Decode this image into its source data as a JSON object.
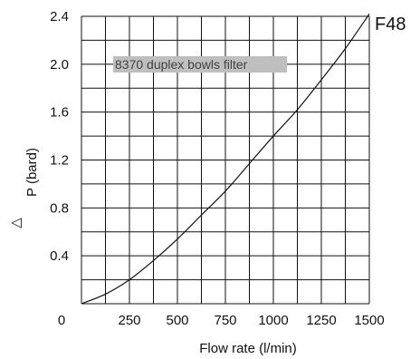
{
  "chart_data": {
    "type": "line",
    "title": "F48",
    "annotation": "8370 duplex bowls filter",
    "xlabel": "Flow rate  (l/min)",
    "ylabel_symbol": "△",
    "ylabel": "P (bard)",
    "x_ticks": [
      "250",
      "500",
      "750",
      "1000",
      "1250",
      "1500"
    ],
    "y_ticks": [
      "0.4",
      "0.8",
      "1.2",
      "1.6",
      "2.0",
      "2.4"
    ],
    "origin_label": "0",
    "xlim": [
      0,
      1500
    ],
    "ylim": [
      0,
      2.4
    ],
    "grid": true,
    "x_gridlines": 12,
    "y_gridlines": 12,
    "series": [
      {
        "x": [
          0,
          125,
          250,
          375,
          500,
          625,
          750,
          875,
          1000,
          1125,
          1250,
          1375,
          1500
        ],
        "y": [
          0,
          0.08,
          0.2,
          0.36,
          0.54,
          0.74,
          0.94,
          1.17,
          1.4,
          1.62,
          1.87,
          2.13,
          2.42
        ]
      }
    ]
  },
  "colors": {
    "line": "#111111",
    "annotation_bg": "#bfbfbf",
    "annotation_text": "#444444"
  }
}
